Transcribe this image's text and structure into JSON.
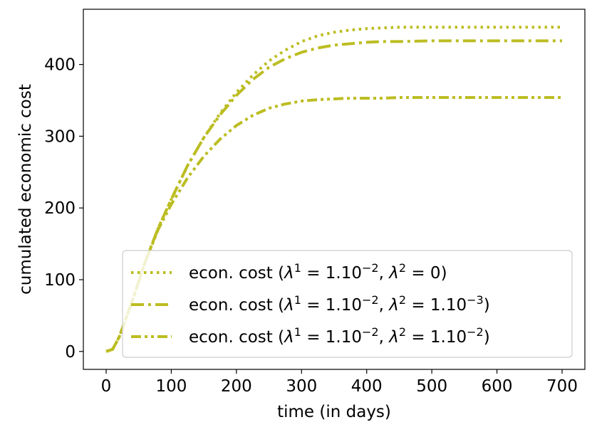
{
  "chart_data": {
    "type": "line",
    "title": "",
    "xlabel": "time (in days)",
    "ylabel": "cumulated economic cost",
    "xlim": [
      -35,
      735
    ],
    "ylim": [
      -25,
      477
    ],
    "xticks": [
      0,
      100,
      200,
      300,
      400,
      500,
      600,
      700
    ],
    "yticks": [
      0,
      100,
      200,
      300,
      400
    ],
    "grid": false,
    "legend_position": "lower-right",
    "color": "#bcbd22",
    "series": [
      {
        "name": "econ. cost (λ¹ = 1.10⁻², λ² = 0)",
        "legend": {
          "pre": "econ. cost (",
          "a": "1.10",
          "aexp": "−2",
          "b": "0",
          "bexp": ""
        },
        "linestyle": "dotted",
        "x": [
          0,
          10,
          20,
          40,
          60,
          80,
          100,
          125,
          150,
          175,
          200,
          225,
          250,
          275,
          300,
          325,
          350,
          375,
          400,
          425,
          450,
          500,
          550,
          600,
          650,
          700
        ],
        "y": [
          0,
          3,
          20,
          70,
          125,
          172,
          212,
          259,
          298,
          332,
          361,
          385,
          405,
          420,
          432,
          440,
          445,
          448,
          450,
          451,
          452,
          452,
          452,
          452,
          452,
          452
        ]
      },
      {
        "name": "econ. cost (λ¹ = 1.10⁻², λ² = 1.10⁻³)",
        "legend": {
          "pre": "econ. cost (",
          "a": "1.10",
          "aexp": "−2",
          "b": "1.10",
          "bexp": "−3"
        },
        "linestyle": "dashdot",
        "x": [
          0,
          10,
          20,
          40,
          60,
          80,
          100,
          125,
          150,
          175,
          200,
          225,
          250,
          275,
          300,
          325,
          350,
          375,
          400,
          425,
          450,
          500,
          550,
          600,
          650,
          700
        ],
        "y": [
          0,
          3,
          20,
          70,
          125,
          172,
          212,
          259,
          298,
          330,
          357,
          379,
          396,
          408,
          417,
          423,
          427,
          429,
          431,
          432,
          432,
          433,
          433,
          433,
          433,
          433
        ]
      },
      {
        "name": "econ. cost (λ¹ = 1.10⁻², λ² = 1.10⁻²)",
        "legend": {
          "pre": "econ. cost (",
          "a": "1.10",
          "aexp": "−2",
          "b": "1.10",
          "bexp": "−2"
        },
        "linestyle": "dashdotdot",
        "x": [
          0,
          10,
          20,
          40,
          60,
          80,
          100,
          125,
          150,
          175,
          200,
          225,
          250,
          275,
          300,
          325,
          350,
          375,
          400,
          425,
          450,
          500,
          550,
          600,
          650,
          700
        ],
        "y": [
          0,
          3,
          20,
          70,
          125,
          170,
          205,
          242,
          272,
          296,
          315,
          329,
          339,
          345,
          349,
          351,
          352,
          353,
          353,
          353,
          354,
          354,
          354,
          354,
          354,
          354
        ]
      }
    ]
  }
}
